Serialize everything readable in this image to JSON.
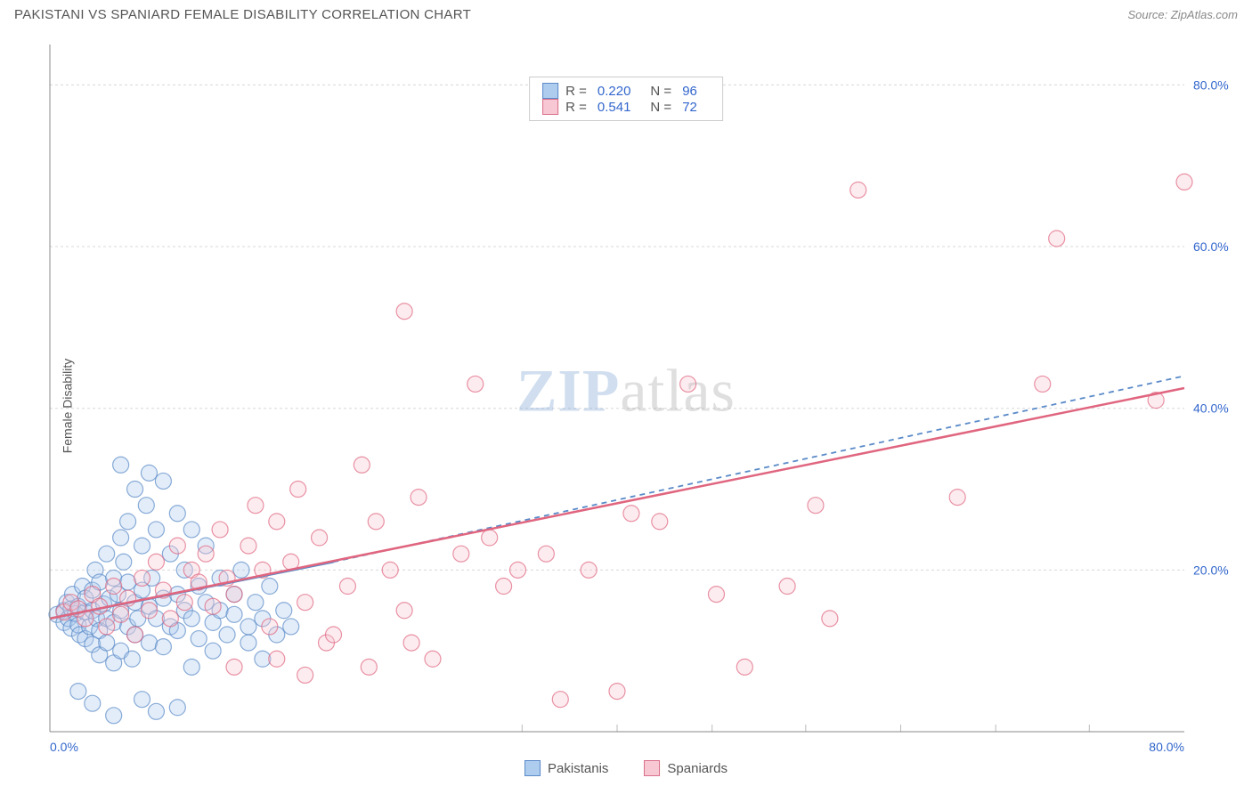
{
  "title": "PAKISTANI VS SPANIARD FEMALE DISABILITY CORRELATION CHART",
  "source_label": "Source: ",
  "source_name": "ZipAtlas.com",
  "ylabel": "Female Disability",
  "watermark": {
    "zip": "ZIP",
    "atlas": "atlas"
  },
  "stats_legend": [
    {
      "swatch_fill": "#aeccee",
      "swatch_stroke": "#5a8ac8",
      "r_label": "R =",
      "r_value": "0.220",
      "n_label": "N =",
      "n_value": "96"
    },
    {
      "swatch_fill": "#f7c8d3",
      "swatch_stroke": "#d86e8a",
      "r_label": "R =",
      "r_value": "0.541",
      "n_label": "N =",
      "n_value": "72"
    }
  ],
  "bottom_legend": [
    {
      "swatch_fill": "#aeccee",
      "swatch_stroke": "#5a8ac8",
      "label": "Pakistanis"
    },
    {
      "swatch_fill": "#f7c8d3",
      "swatch_stroke": "#d86e8a",
      "label": "Spaniards"
    }
  ],
  "chart": {
    "type": "scatter",
    "background_color": "#ffffff",
    "grid_color": "#d8d8d8",
    "tick_label_color": "#3266cc",
    "tick_fontsize": 14,
    "xlim": [
      0,
      80
    ],
    "ylim": [
      0,
      85
    ],
    "xtick_labels": [
      "0.0%",
      "80.0%"
    ],
    "xtick_positions": [
      0,
      80
    ],
    "ytick_labels": [
      "20.0%",
      "40.0%",
      "60.0%",
      "80.0%"
    ],
    "ytick_positions": [
      20,
      40,
      60,
      80
    ],
    "minor_x_ticks": [
      33.3,
      40,
      46.7,
      53.3,
      60,
      66.7,
      73.3
    ],
    "marker_radius": 9,
    "marker_fill_opacity": 0.35,
    "marker_stroke_width": 1.2,
    "series": [
      {
        "name": "Pakistanis",
        "color": "#5a8ac8",
        "fill": "#aeccee",
        "regression": {
          "x1": 0,
          "y1": 14,
          "x2": 20,
          "y2": 21,
          "solid": true
        },
        "regression_extrapolate": {
          "x1": 20,
          "y1": 21,
          "x2": 80,
          "y2": 44,
          "dashed": true
        },
        "points": [
          [
            0.5,
            14.5
          ],
          [
            1,
            15
          ],
          [
            1,
            13.5
          ],
          [
            1.2,
            16
          ],
          [
            1.3,
            14
          ],
          [
            1.5,
            15.2
          ],
          [
            1.5,
            12.8
          ],
          [
            1.6,
            17
          ],
          [
            1.8,
            14.6
          ],
          [
            2,
            13.2
          ],
          [
            2,
            15.5
          ],
          [
            2.1,
            12
          ],
          [
            2.3,
            18
          ],
          [
            2.5,
            14.8
          ],
          [
            2.5,
            16.5
          ],
          [
            2.5,
            11.5
          ],
          [
            2.8,
            13
          ],
          [
            3,
            15
          ],
          [
            3,
            10.8
          ],
          [
            3,
            17.5
          ],
          [
            3.2,
            20
          ],
          [
            3.3,
            14
          ],
          [
            3.5,
            12.5
          ],
          [
            3.5,
            18.5
          ],
          [
            3.5,
            9.5
          ],
          [
            3.8,
            15.8
          ],
          [
            4,
            14
          ],
          [
            4,
            22
          ],
          [
            4,
            11
          ],
          [
            4.2,
            16.5
          ],
          [
            4.5,
            13.5
          ],
          [
            4.5,
            19
          ],
          [
            4.5,
            8.5
          ],
          [
            4.8,
            17
          ],
          [
            5,
            15
          ],
          [
            5,
            10
          ],
          [
            5,
            24
          ],
          [
            5.2,
            21
          ],
          [
            5.5,
            13
          ],
          [
            5.5,
            18.5
          ],
          [
            5.5,
            26
          ],
          [
            5.8,
            9
          ],
          [
            6,
            16
          ],
          [
            6,
            12
          ],
          [
            6,
            30
          ],
          [
            6.2,
            14
          ],
          [
            6.5,
            23
          ],
          [
            6.5,
            17.5
          ],
          [
            6.8,
            28
          ],
          [
            7,
            15.5
          ],
          [
            7,
            11
          ],
          [
            7,
            32
          ],
          [
            7.2,
            19
          ],
          [
            7.5,
            14
          ],
          [
            7.5,
            25
          ],
          [
            8,
            16.5
          ],
          [
            8,
            10.5
          ],
          [
            8,
            31
          ],
          [
            8.5,
            13
          ],
          [
            8.5,
            22
          ],
          [
            9,
            17
          ],
          [
            9,
            12.5
          ],
          [
            9,
            27
          ],
          [
            9.5,
            15
          ],
          [
            9.5,
            20
          ],
          [
            10,
            14
          ],
          [
            10,
            25
          ],
          [
            10,
            8
          ],
          [
            10.5,
            18
          ],
          [
            10.5,
            11.5
          ],
          [
            11,
            16
          ],
          [
            11,
            23
          ],
          [
            11.5,
            13.5
          ],
          [
            11.5,
            10
          ],
          [
            12,
            19
          ],
          [
            12,
            15
          ],
          [
            12.5,
            12
          ],
          [
            13,
            17
          ],
          [
            13,
            14.5
          ],
          [
            13.5,
            20
          ],
          [
            14,
            13
          ],
          [
            14,
            11
          ],
          [
            14.5,
            16
          ],
          [
            15,
            14
          ],
          [
            15,
            9
          ],
          [
            15.5,
            18
          ],
          [
            16,
            12
          ],
          [
            16.5,
            15
          ],
          [
            17,
            13
          ],
          [
            7.5,
            2.5
          ],
          [
            6.5,
            4
          ],
          [
            4.5,
            2
          ],
          [
            3,
            3.5
          ],
          [
            2,
            5
          ],
          [
            9,
            3
          ],
          [
            5,
            33
          ]
        ]
      },
      {
        "name": "Spaniards",
        "color": "#e0657f",
        "fill": "#f7c8d3",
        "regression": {
          "x1": 0,
          "y1": 14,
          "x2": 80,
          "y2": 42.5,
          "solid": true
        },
        "points": [
          [
            1,
            14.8
          ],
          [
            1.5,
            16
          ],
          [
            2,
            15.2
          ],
          [
            2.5,
            14
          ],
          [
            3,
            17
          ],
          [
            3.5,
            15.5
          ],
          [
            4,
            13
          ],
          [
            4.5,
            18
          ],
          [
            5,
            14.5
          ],
          [
            5.5,
            16.5
          ],
          [
            6,
            12
          ],
          [
            6.5,
            19
          ],
          [
            7,
            15
          ],
          [
            7.5,
            21
          ],
          [
            8,
            17.5
          ],
          [
            8.5,
            14
          ],
          [
            9,
            23
          ],
          [
            9.5,
            16
          ],
          [
            10,
            20
          ],
          [
            10.5,
            18.5
          ],
          [
            11,
            22
          ],
          [
            11.5,
            15.5
          ],
          [
            12,
            25
          ],
          [
            12.5,
            19
          ],
          [
            13,
            17
          ],
          [
            14,
            23
          ],
          [
            14.5,
            28
          ],
          [
            15,
            20
          ],
          [
            15.5,
            13
          ],
          [
            16,
            26
          ],
          [
            17,
            21
          ],
          [
            17.5,
            30
          ],
          [
            18,
            16
          ],
          [
            19,
            24
          ],
          [
            19.5,
            11
          ],
          [
            20,
            12
          ],
          [
            21,
            18
          ],
          [
            22,
            33
          ],
          [
            22.5,
            8
          ],
          [
            23,
            26
          ],
          [
            24,
            20
          ],
          [
            25,
            15
          ],
          [
            25.5,
            11
          ],
          [
            26,
            29
          ],
          [
            25,
            52
          ],
          [
            27,
            9
          ],
          [
            29,
            22
          ],
          [
            30,
            43
          ],
          [
            31,
            24
          ],
          [
            32,
            18
          ],
          [
            33,
            20
          ],
          [
            35,
            22
          ],
          [
            36,
            4
          ],
          [
            38,
            20
          ],
          [
            40,
            5
          ],
          [
            41,
            27
          ],
          [
            43,
            26
          ],
          [
            45,
            43
          ],
          [
            47,
            17
          ],
          [
            49,
            8
          ],
          [
            52,
            18
          ],
          [
            54,
            28
          ],
          [
            55,
            14
          ],
          [
            57,
            67
          ],
          [
            64,
            29
          ],
          [
            70,
            43
          ],
          [
            71,
            61
          ],
          [
            78,
            41
          ],
          [
            80,
            68
          ],
          [
            16,
            9
          ],
          [
            13,
            8
          ],
          [
            18,
            7
          ]
        ]
      }
    ]
  }
}
